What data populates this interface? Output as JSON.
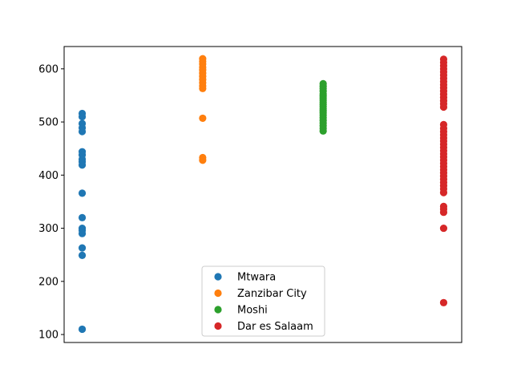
{
  "chart_data": {
    "type": "scatter",
    "title": "",
    "xlabel": "",
    "ylabel": "",
    "ylim": [
      85,
      642
    ],
    "xlim": [
      -0.15,
      3.15
    ],
    "yticks": [
      100,
      200,
      300,
      400,
      500,
      600
    ],
    "grid": false,
    "legend_position": "bottom-center",
    "series": [
      {
        "name": "Mtwara",
        "color": "#1f77b4",
        "x": 0,
        "values": [
          516,
          510,
          497,
          489,
          482,
          444,
          438,
          430,
          425,
          419,
          366,
          320,
          300,
          296,
          290,
          263,
          249,
          110
        ]
      },
      {
        "name": "Zanzibar City",
        "color": "#ff7f0e",
        "x": 1,
        "values": [
          619,
          614,
          609,
          603,
          598,
          592,
          586,
          580,
          574,
          568,
          563,
          507,
          433,
          428
        ]
      },
      {
        "name": "Moshi",
        "color": "#2ca02c",
        "x": 2,
        "values": [
          572,
          567,
          563,
          558,
          553,
          549,
          545,
          541,
          537,
          533,
          529,
          525,
          521,
          517,
          513,
          508,
          503,
          498,
          493,
          488,
          483
        ]
      },
      {
        "name": "Dar es Salaam",
        "color": "#d62728",
        "x": 3,
        "values": [
          618,
          612,
          606,
          600,
          594,
          588,
          582,
          576,
          570,
          564,
          558,
          552,
          546,
          540,
          534,
          528,
          495,
          488,
          482,
          476,
          470,
          464,
          458,
          452,
          446,
          440,
          434,
          428,
          422,
          416,
          410,
          404,
          398,
          392,
          386,
          380,
          374,
          367,
          341,
          336,
          330,
          300,
          160
        ]
      }
    ]
  }
}
